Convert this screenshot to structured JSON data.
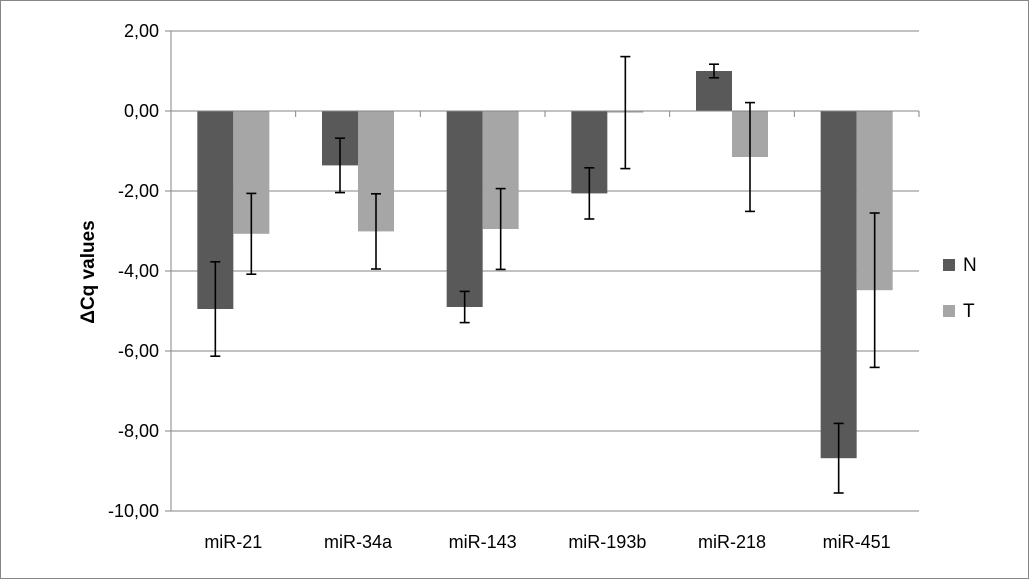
{
  "chart_data": {
    "type": "bar",
    "title": "",
    "xlabel": "",
    "ylabel": "ΔCq values",
    "ylim": [
      -10,
      2
    ],
    "ytick_step": 2,
    "ytick_labels": [
      "2,00",
      "0,00",
      "-2,00",
      "-4,00",
      "-6,00",
      "-8,00",
      "-10,00"
    ],
    "grid": true,
    "legend_position": "right",
    "categories": [
      "miR-21",
      "miR-34a",
      "miR-143",
      "miR-193b",
      "miR-218",
      "miR-451"
    ],
    "series": [
      {
        "name": "N",
        "color": "#595959",
        "values": [
          -4.95,
          -1.36,
          -4.9,
          -2.06,
          1.0,
          -8.68
        ],
        "errors": [
          1.18,
          0.68,
          0.39,
          0.64,
          0.17,
          0.87
        ]
      },
      {
        "name": "T",
        "color": "#a6a6a6",
        "values": [
          -3.07,
          -3.01,
          -2.95,
          -0.04,
          -1.15,
          -4.48
        ],
        "errors": [
          1.01,
          0.94,
          1.01,
          1.4,
          1.36,
          1.93
        ]
      }
    ]
  }
}
